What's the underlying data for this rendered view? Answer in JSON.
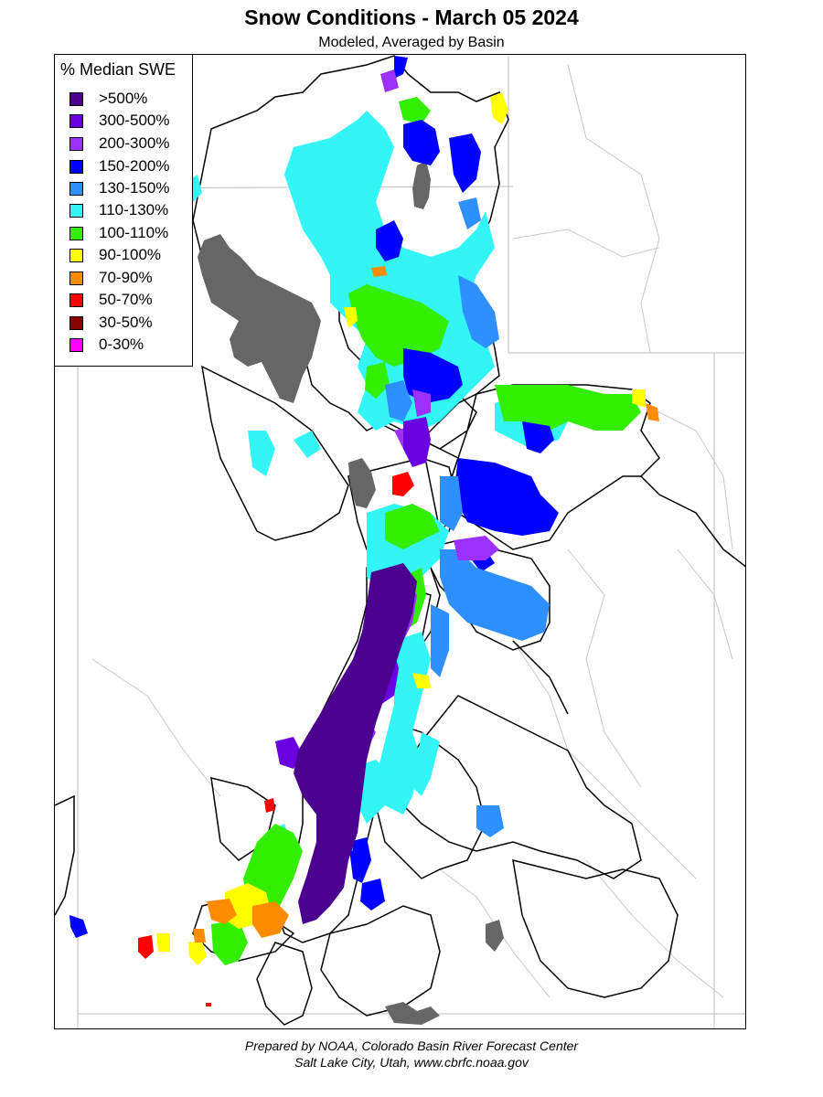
{
  "map": {
    "title": "Snow Conditions - March 05 2024",
    "subtitle": "Modeled, Averaged by Basin",
    "legend": {
      "title": "% Median SWE",
      "items": [
        {
          "label": ">500%",
          "color": "#4b0090"
        },
        {
          "label": "300-500%",
          "color": "#6a00e0"
        },
        {
          "label": "200-300%",
          "color": "#9b30ff"
        },
        {
          "label": "150-200%",
          "color": "#0000ff"
        },
        {
          "label": "130-150%",
          "color": "#2e8fff"
        },
        {
          "label": "110-130%",
          "color": "#33f5f5"
        },
        {
          "label": "100-110%",
          "color": "#33ee00"
        },
        {
          "label": "90-100%",
          "color": "#ffff00"
        },
        {
          "label": "70-90%",
          "color": "#ff8c00"
        },
        {
          "label": "50-70%",
          "color": "#ff0000"
        },
        {
          "label": "30-50%",
          "color": "#8b0000"
        },
        {
          "label": "0-30%",
          "color": "#ff00ff"
        }
      ]
    },
    "footer": {
      "line1": "Prepared by NOAA, Colorado Basin River Forecast Center",
      "line2": "Salt Lake City, Utah, www.cbrfc.noaa.gov"
    }
  }
}
